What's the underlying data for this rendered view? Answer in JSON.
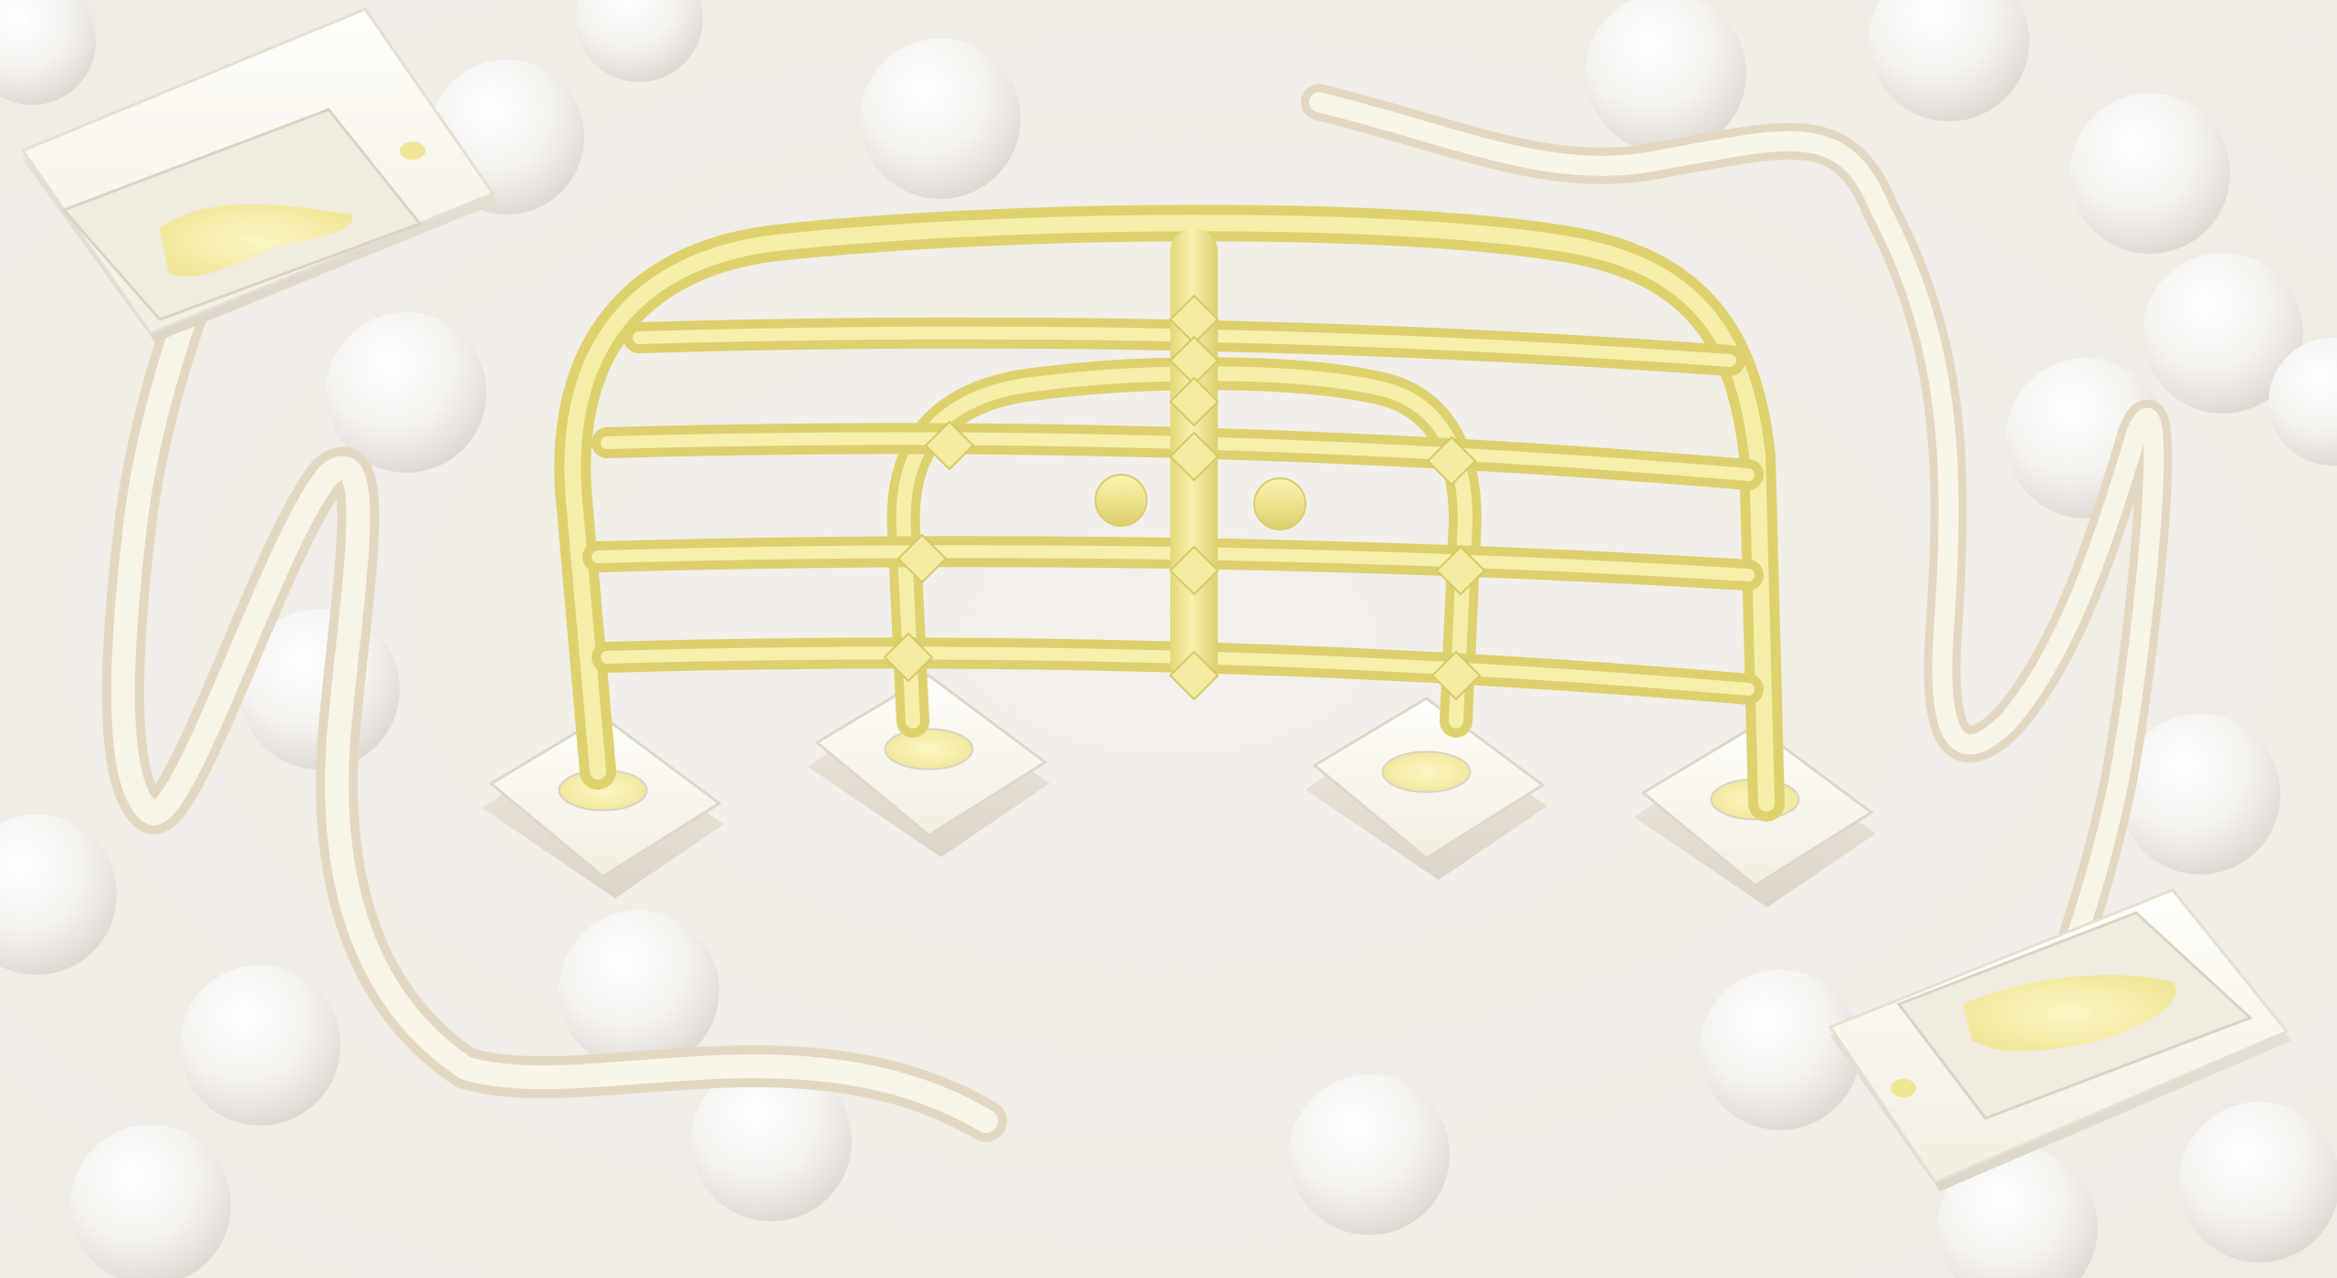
{
  "scene": {
    "subject": "",
    "icons": {
      "spheres": "sphere-icon",
      "fence": "fence-icon",
      "bases": "pedestal-icon",
      "cables": "cable-icon",
      "plugs": "plug-icon"
    }
  },
  "palette": {
    "background": "#F2EFEA",
    "sphere_light": "#FFFFFF",
    "sphere_shadow": "#DDD8D2",
    "fence_light": "#F8F2B4",
    "fence_mid": "#EEE38C",
    "fence_dark": "#D9CC6A",
    "base_top": "#FBF9F2",
    "base_side": "#E7E2D6",
    "base_edge": "#D9D3C5",
    "cable_light": "#FBF6EA",
    "cable_dark": "#E7DDC8",
    "socket_glow": "#F3EC9C"
  }
}
